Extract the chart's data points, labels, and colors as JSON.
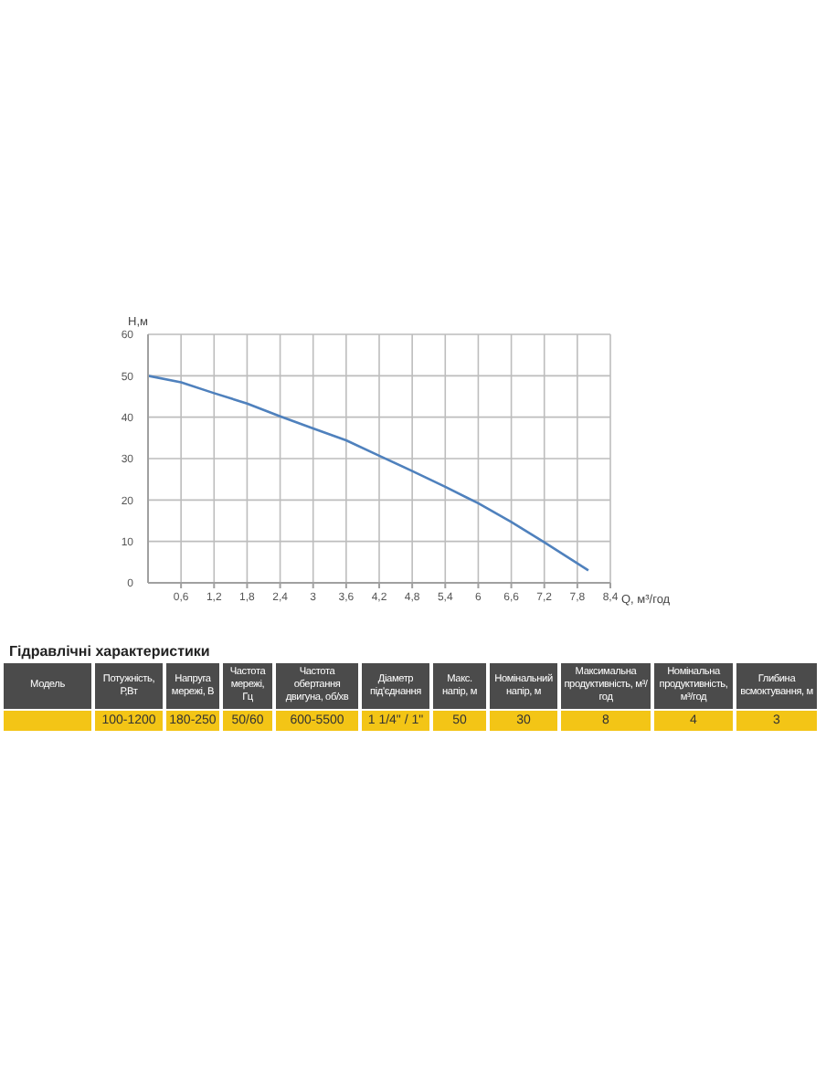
{
  "chart_data": [
    {
      "type": "line",
      "xlabel": "Q, м³/год",
      "ylabel": "H,м",
      "x": [
        0,
        0.6,
        1.2,
        1.8,
        2.4,
        3,
        3.6,
        4.2,
        4.8,
        5.4,
        6,
        6.6,
        7.2,
        8
      ],
      "series": [
        {
          "color": "#4f81bd",
          "values": [
            50,
            48.4,
            45.8,
            43.3,
            40.2,
            37.3,
            34.4,
            30.7,
            27,
            23.2,
            19.2,
            14.7,
            9.8,
            3
          ]
        }
      ],
      "xlim": [
        0,
        8.4
      ],
      "xticks": [
        {
          "value": 0.6,
          "label": "0,6"
        },
        {
          "value": 1.2,
          "label": "1,2"
        },
        {
          "value": 1.8,
          "label": "1,8"
        },
        {
          "value": 2.4,
          "label": "2,4"
        },
        3,
        {
          "value": 3.6,
          "label": "3,6"
        },
        {
          "value": 4.2,
          "label": "4,2"
        },
        {
          "value": 4.8,
          "label": "4,8"
        },
        {
          "value": 5.4,
          "label": "5,4"
        },
        6,
        {
          "value": 6.6,
          "label": "6,6"
        },
        {
          "value": 7.2,
          "label": "7,2"
        },
        {
          "value": 7.8,
          "label": "7,8"
        },
        {
          "value": 8.4,
          "label": "8,4"
        }
      ],
      "ylim": [
        0,
        60
      ],
      "yticks": [
        0,
        10,
        20,
        30,
        40,
        50,
        60
      ],
      "grid": true,
      "marker": "none"
    },
    {
      "type": "other",
      "title": "Гідравлічні характеристики",
      "categories": [
        "Модель",
        "Потужність, Р,Вт",
        "Напруга мережі, В",
        "Частота мережі, Гц",
        "Частота обертання двигуна, об/хв",
        "Діаметр під'єднання",
        "Макс. напір, м",
        "Номінальний напір, м",
        "Максимальна продуктивність, м³/год",
        "Номінальна продуктивність,м³/год",
        "Глибина всмоктування, м"
      ],
      "cell_labels": [
        [
          null,
          "100-1200",
          "180-250",
          "50/60",
          "600-5500",
          "1 1/4\" / 1\"",
          "50",
          "30",
          "8",
          "4",
          "3"
        ]
      ]
    }
  ]
}
